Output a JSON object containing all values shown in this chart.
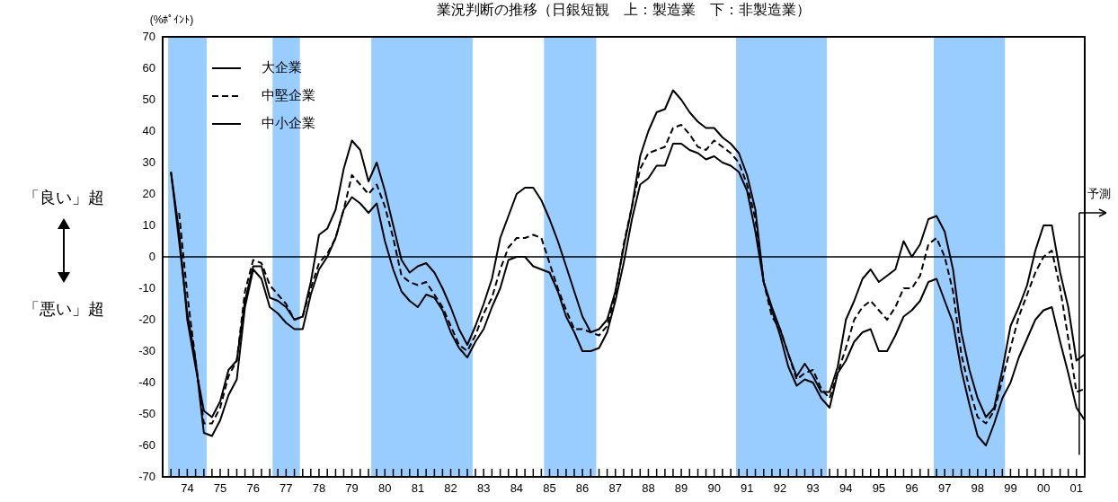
{
  "chart_data": {
    "type": "line",
    "title": "業況判断の推移（日銀短観　上：製造業　下：非製造業）",
    "ylabel": "(%ﾎﾟｲﾝﾄ)",
    "annotations": [
      "「良い」超",
      "「悪い」超"
    ],
    "x": [
      "1974-01",
      "1974-04",
      "1974-07",
      "1974-10",
      "1975-01",
      "1975-04",
      "1975-07",
      "1975-10",
      "1976-01",
      "1976-04",
      "1976-07",
      "1976-10",
      "1977-01",
      "1977-04",
      "1977-07",
      "1977-10",
      "1978-01",
      "1978-04",
      "1978-07",
      "1978-10",
      "1979-01",
      "1979-04",
      "1979-07",
      "1979-10",
      "1980-01",
      "1980-04",
      "1980-07",
      "1980-10",
      "1981-01",
      "1981-04",
      "1981-07",
      "1981-10",
      "1982-01",
      "1982-04",
      "1982-07",
      "1982-10",
      "1983-01",
      "1983-04",
      "1983-07",
      "1983-10",
      "1984-01",
      "1984-04",
      "1984-07",
      "1984-10",
      "1985-01",
      "1985-04",
      "1985-07",
      "1985-10",
      "1986-01",
      "1986-04",
      "1986-07",
      "1986-10",
      "1987-01",
      "1987-04",
      "1987-07",
      "1987-10",
      "1988-01",
      "1988-04",
      "1988-07",
      "1988-10",
      "1989-01",
      "1989-04",
      "1989-07",
      "1989-10",
      "1990-01",
      "1990-04",
      "1990-07",
      "1990-10",
      "1991-01",
      "1991-04",
      "1991-07",
      "1991-10",
      "1992-01",
      "1992-04",
      "1992-07",
      "1992-10",
      "1993-01",
      "1993-04",
      "1993-07",
      "1993-10",
      "1994-01",
      "1994-04",
      "1994-07",
      "1994-10",
      "1995-01",
      "1995-04",
      "1995-07",
      "1995-10",
      "1996-01",
      "1996-04",
      "1996-07",
      "1996-10",
      "1997-01",
      "1997-04",
      "1997-07",
      "1997-10",
      "1998-01",
      "1998-04",
      "1998-07",
      "1998-10",
      "1999-01",
      "1999-04",
      "1999-07",
      "1999-10",
      "2000-01",
      "2000-04",
      "2000-07",
      "2000-10",
      "2001-01",
      "2001-04",
      "2001-07",
      "2001-10"
    ],
    "series": [
      {
        "name": "大企業",
        "color": "#000000",
        "line_style": "solid",
        "values": [
          27,
          8,
          -20,
          -35,
          -49,
          -51,
          -46,
          -36,
          -33,
          -14,
          -3,
          -3,
          -13,
          -14,
          -16,
          -20,
          -19,
          -8,
          7,
          9,
          15,
          28,
          37,
          34,
          24,
          30,
          21,
          10,
          -1,
          -5,
          -3,
          -2,
          -5,
          -10,
          -16,
          -23,
          -28,
          -22,
          -15,
          -7,
          6,
          13,
          20,
          22,
          22,
          18,
          12,
          5,
          -3,
          -11,
          -19,
          -24,
          -23,
          -20,
          -11,
          3,
          16,
          32,
          40,
          46,
          47,
          53,
          50,
          46,
          43,
          41,
          41,
          38,
          36,
          33,
          26,
          15,
          -8,
          -16,
          -23,
          -31,
          -38,
          -34,
          -38,
          -43,
          -43,
          -35,
          -20,
          -14,
          -7,
          -4,
          -8,
          -6,
          -4,
          5,
          0,
          4,
          12,
          13,
          8,
          -4,
          -24,
          -36,
          -45,
          -51,
          -48,
          -36,
          -22,
          -16,
          -9,
          2,
          10,
          10,
          -5,
          -16,
          -33,
          -31
        ]
      },
      {
        "name": "中堅企業",
        "color": "#000000",
        "line_style": "dashed",
        "values": [
          null,
          14,
          -12,
          -33,
          -53,
          -53,
          -48,
          -38,
          -33,
          -11,
          -1,
          -2,
          -9,
          -12,
          -15,
          -20,
          -19,
          -10,
          -2,
          1,
          6,
          15,
          26,
          23,
          20,
          23,
          16,
          6,
          -6,
          -8,
          -9,
          -8,
          -12,
          -16,
          -22,
          -28,
          -30,
          -25,
          -18,
          -13,
          -4,
          3,
          6,
          6,
          7,
          6,
          -2,
          -10,
          -17,
          -23,
          -23,
          -24,
          -25,
          -22,
          -12,
          4,
          16,
          28,
          33,
          34,
          35,
          41,
          42,
          39,
          35,
          34,
          37,
          35,
          33,
          30,
          23,
          12,
          -8,
          -19,
          -23,
          -31,
          -39,
          -37,
          -36,
          -42,
          -45,
          -37,
          -29,
          -20,
          -16,
          -14,
          -17,
          -20,
          -16,
          -10,
          -10,
          -6,
          4,
          6,
          0,
          -11,
          -31,
          -42,
          -51,
          -53,
          -49,
          -39,
          -29,
          -19,
          -12,
          -5,
          0,
          2,
          -10,
          -26,
          -43,
          -42
        ]
      },
      {
        "name": "中小企業",
        "color": "#000000",
        "line_style": "solid",
        "values": [
          27,
          5,
          -18,
          -33,
          -56,
          -57,
          -52,
          -44,
          -39,
          -16,
          -4,
          -7,
          -16,
          -18,
          -21,
          -23,
          -23,
          -12,
          -4,
          0,
          6,
          15,
          19,
          17,
          14,
          17,
          5,
          -4,
          -11,
          -14,
          -16,
          -12,
          -13,
          -17,
          -24,
          -29,
          -32,
          -27,
          -23,
          -16,
          -10,
          -1,
          0,
          0,
          -3,
          -4,
          -5,
          -11,
          -19,
          -24,
          -30,
          -30,
          -29,
          -24,
          -14,
          -2,
          12,
          23,
          25,
          29,
          29,
          36,
          36,
          34,
          33,
          31,
          32,
          30,
          29,
          27,
          21,
          8,
          -8,
          -17,
          -25,
          -35,
          -41,
          -39,
          -40,
          -45,
          -48,
          -37,
          -33,
          -27,
          -24,
          -23,
          -30,
          -30,
          -25,
          -19,
          -17,
          -14,
          -8,
          -7,
          -14,
          -21,
          -36,
          -47,
          -57,
          -60,
          -53,
          -45,
          -40,
          -32,
          -26,
          -20,
          -17,
          -16,
          -27,
          -37,
          -48,
          -52
        ]
      }
    ],
    "xlim": [
      "1973-10",
      "2001-10"
    ],
    "xticks": [
      {
        "value": "1973-10",
        "label": null
      },
      {
        "value": "1974-01",
        "label": null
      },
      {
        "value": "1974-04",
        "label": null
      },
      {
        "value": "1974-07",
        "label": "74"
      },
      {
        "value": "1974-10",
        "label": null
      },
      {
        "value": "1975-01",
        "label": null
      },
      {
        "value": "1975-04",
        "label": null
      },
      {
        "value": "1975-07",
        "label": "75"
      },
      {
        "value": "1975-10",
        "label": null
      },
      {
        "value": "1976-01",
        "label": null
      },
      {
        "value": "1976-04",
        "label": null
      },
      {
        "value": "1976-07",
        "label": "76"
      },
      {
        "value": "1976-10",
        "label": null
      },
      {
        "value": "1977-01",
        "label": null
      },
      {
        "value": "1977-04",
        "label": null
      },
      {
        "value": "1977-07",
        "label": "77"
      },
      {
        "value": "1977-10",
        "label": null
      },
      {
        "value": "1978-01",
        "label": null
      },
      {
        "value": "1978-04",
        "label": null
      },
      {
        "value": "1978-07",
        "label": "78"
      },
      {
        "value": "1978-10",
        "label": null
      },
      {
        "value": "1979-01",
        "label": null
      },
      {
        "value": "1979-04",
        "label": null
      },
      {
        "value": "1979-07",
        "label": "79"
      },
      {
        "value": "1979-10",
        "label": null
      },
      {
        "value": "1980-01",
        "label": null
      },
      {
        "value": "1980-04",
        "label": null
      },
      {
        "value": "1980-07",
        "label": "80"
      },
      {
        "value": "1980-10",
        "label": null
      },
      {
        "value": "1981-01",
        "label": null
      },
      {
        "value": "1981-04",
        "label": null
      },
      {
        "value": "1981-07",
        "label": "81"
      },
      {
        "value": "1981-10",
        "label": null
      },
      {
        "value": "1982-01",
        "label": null
      },
      {
        "value": "1982-04",
        "label": null
      },
      {
        "value": "1982-07",
        "label": "82"
      },
      {
        "value": "1982-10",
        "label": null
      },
      {
        "value": "1983-01",
        "label": null
      },
      {
        "value": "1983-04",
        "label": null
      },
      {
        "value": "1983-07",
        "label": "83"
      },
      {
        "value": "1983-10",
        "label": null
      },
      {
        "value": "1984-01",
        "label": null
      },
      {
        "value": "1984-04",
        "label": null
      },
      {
        "value": "1984-07",
        "label": "84"
      },
      {
        "value": "1984-10",
        "label": null
      },
      {
        "value": "1985-01",
        "label": null
      },
      {
        "value": "1985-04",
        "label": null
      },
      {
        "value": "1985-07",
        "label": "85"
      },
      {
        "value": "1985-10",
        "label": null
      },
      {
        "value": "1986-01",
        "label": null
      },
      {
        "value": "1986-04",
        "label": null
      },
      {
        "value": "1986-07",
        "label": "86"
      },
      {
        "value": "1986-10",
        "label": null
      },
      {
        "value": "1987-01",
        "label": null
      },
      {
        "value": "1987-04",
        "label": null
      },
      {
        "value": "1987-07",
        "label": "87"
      },
      {
        "value": "1987-10",
        "label": null
      },
      {
        "value": "1988-01",
        "label": null
      },
      {
        "value": "1988-04",
        "label": null
      },
      {
        "value": "1988-07",
        "label": "88"
      },
      {
        "value": "1988-10",
        "label": null
      },
      {
        "value": "1989-01",
        "label": null
      },
      {
        "value": "1989-04",
        "label": null
      },
      {
        "value": "1989-07",
        "label": "89"
      },
      {
        "value": "1989-10",
        "label": null
      },
      {
        "value": "1990-01",
        "label": null
      },
      {
        "value": "1990-04",
        "label": null
      },
      {
        "value": "1990-07",
        "label": "90"
      },
      {
        "value": "1990-10",
        "label": null
      },
      {
        "value": "1991-01",
        "label": null
      },
      {
        "value": "1991-04",
        "label": null
      },
      {
        "value": "1991-07",
        "label": "91"
      },
      {
        "value": "1991-10",
        "label": null
      },
      {
        "value": "1992-01",
        "label": null
      },
      {
        "value": "1992-04",
        "label": null
      },
      {
        "value": "1992-07",
        "label": "92"
      },
      {
        "value": "1992-10",
        "label": null
      },
      {
        "value": "1993-01",
        "label": null
      },
      {
        "value": "1993-04",
        "label": null
      },
      {
        "value": "1993-07",
        "label": "93"
      },
      {
        "value": "1993-10",
        "label": null
      },
      {
        "value": "1994-01",
        "label": null
      },
      {
        "value": "1994-04",
        "label": null
      },
      {
        "value": "1994-07",
        "label": "94"
      },
      {
        "value": "1994-10",
        "label": null
      },
      {
        "value": "1995-01",
        "label": null
      },
      {
        "value": "1995-04",
        "label": null
      },
      {
        "value": "1995-07",
        "label": "95"
      },
      {
        "value": "1995-10",
        "label": null
      },
      {
        "value": "1996-01",
        "label": null
      },
      {
        "value": "1996-04",
        "label": null
      },
      {
        "value": "1996-07",
        "label": "96"
      },
      {
        "value": "1996-10",
        "label": null
      },
      {
        "value": "1997-01",
        "label": null
      },
      {
        "value": "1997-04",
        "label": null
      },
      {
        "value": "1997-07",
        "label": "97"
      },
      {
        "value": "1997-10",
        "label": null
      },
      {
        "value": "1998-01",
        "label": null
      },
      {
        "value": "1998-04",
        "label": null
      },
      {
        "value": "1998-07",
        "label": "98"
      },
      {
        "value": "1998-10",
        "label": null
      },
      {
        "value": "1999-01",
        "label": null
      },
      {
        "value": "1999-04",
        "label": null
      },
      {
        "value": "1999-07",
        "label": "99"
      },
      {
        "value": "1999-10",
        "label": null
      },
      {
        "value": "2000-01",
        "label": null
      },
      {
        "value": "2000-04",
        "label": null
      },
      {
        "value": "2000-07",
        "label": "00"
      },
      {
        "value": "2000-10",
        "label": null
      },
      {
        "value": "2001-01",
        "label": null
      },
      {
        "value": "2001-04",
        "label": null
      },
      {
        "value": "2001-07",
        "label": "01"
      },
      {
        "value": "2001-10",
        "label": null
      }
    ],
    "ylim": [
      -70,
      70
    ],
    "yticks": [
      -70,
      -60,
      -50,
      -40,
      -30,
      -20,
      -10,
      0,
      10,
      20,
      30,
      40,
      50,
      60,
      70
    ],
    "bands": [
      {
        "axis": "x",
        "from": "1973-12",
        "to": "1975-02",
        "color": "#99ccff"
      },
      {
        "axis": "x",
        "from": "1977-02",
        "to": "1977-12",
        "color": "#99ccff"
      },
      {
        "axis": "x",
        "from": "1980-02",
        "to": "1983-03",
        "color": "#99ccff"
      },
      {
        "axis": "x",
        "from": "1985-05",
        "to": "1986-12",
        "color": "#99ccff"
      },
      {
        "axis": "x",
        "from": "1991-03",
        "to": "1993-12",
        "color": "#99ccff"
      },
      {
        "axis": "x",
        "from": "1997-03",
        "to": "1999-05",
        "color": "#99ccff"
      }
    ],
    "ref_lines": [
      {
        "axis": "y",
        "value": 0,
        "color": "#000000"
      },
      {
        "axis": "x",
        "value": "2001-08",
        "label": "予測",
        "color": "#000000"
      }
    ],
    "grid": false,
    "legend": "top left",
    "marker": "none"
  }
}
